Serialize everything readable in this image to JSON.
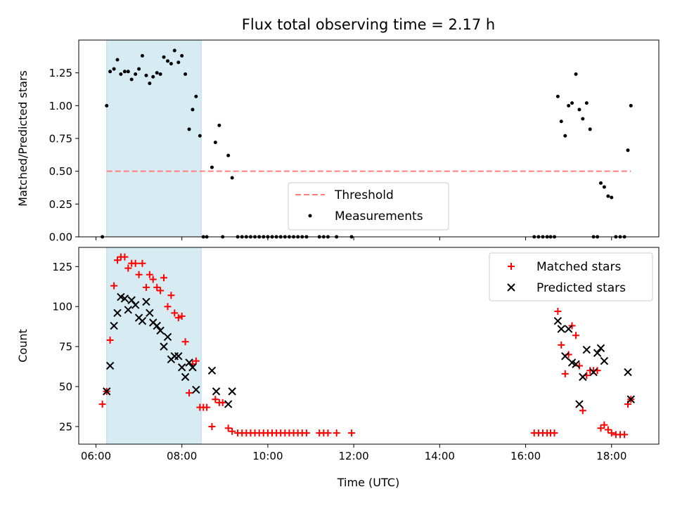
{
  "chart_data": [
    {
      "type": "scatter",
      "title": "Flux total observing time = 2.17 h",
      "xlabel": "",
      "ylabel": "Matched/Predicted stars",
      "xlim": [
        5.6,
        19.1
      ],
      "ylim": [
        0,
        1.5
      ],
      "y_ticks": [
        {
          "v": 0.0,
          "label": "0.00"
        },
        {
          "v": 0.25,
          "label": "0.25"
        },
        {
          "v": 0.5,
          "label": "0.50"
        },
        {
          "v": 0.75,
          "label": "0.75"
        },
        {
          "v": 1.0,
          "label": "1.00"
        },
        {
          "v": 1.25,
          "label": "1.25"
        }
      ],
      "shaded_region": [
        6.25,
        8.45
      ],
      "threshold": {
        "y": 0.5,
        "x_range": [
          6.25,
          18.45
        ]
      },
      "legend": {
        "position": "lower-center",
        "entries": [
          "Threshold",
          "Measurements"
        ]
      },
      "series": [
        {
          "name": "Measurements",
          "color": "#000000",
          "points": [
            [
              6.15,
              0.0
            ],
            [
              6.25,
              1.0
            ],
            [
              6.33,
              1.26
            ],
            [
              6.42,
              1.28
            ],
            [
              6.5,
              1.35
            ],
            [
              6.58,
              1.24
            ],
            [
              6.67,
              1.26
            ],
            [
              6.75,
              1.26
            ],
            [
              6.83,
              1.2
            ],
            [
              6.92,
              1.24
            ],
            [
              7.0,
              1.28
            ],
            [
              7.08,
              1.38
            ],
            [
              7.17,
              1.23
            ],
            [
              7.25,
              1.17
            ],
            [
              7.33,
              1.22
            ],
            [
              7.42,
              1.25
            ],
            [
              7.5,
              1.24
            ],
            [
              7.58,
              1.37
            ],
            [
              7.67,
              1.34
            ],
            [
              7.75,
              1.32
            ],
            [
              7.83,
              1.42
            ],
            [
              7.92,
              1.33
            ],
            [
              8.0,
              1.38
            ],
            [
              8.08,
              1.24
            ],
            [
              8.17,
              0.82
            ],
            [
              8.25,
              0.97
            ],
            [
              8.33,
              1.07
            ],
            [
              8.42,
              0.77
            ],
            [
              8.5,
              0.0
            ],
            [
              8.58,
              0.0
            ],
            [
              8.7,
              0.53
            ],
            [
              8.78,
              0.72
            ],
            [
              8.87,
              0.85
            ],
            [
              8.95,
              0.0
            ],
            [
              9.08,
              0.62
            ],
            [
              9.17,
              0.45
            ],
            [
              9.3,
              0.0
            ],
            [
              9.4,
              0.0
            ],
            [
              9.5,
              0.0
            ],
            [
              9.6,
              0.0
            ],
            [
              9.7,
              0.0
            ],
            [
              9.8,
              0.0
            ],
            [
              9.9,
              0.0
            ],
            [
              10.0,
              0.0
            ],
            [
              10.1,
              0.0
            ],
            [
              10.2,
              0.0
            ],
            [
              10.3,
              0.0
            ],
            [
              10.4,
              0.0
            ],
            [
              10.5,
              0.0
            ],
            [
              10.6,
              0.0
            ],
            [
              10.7,
              0.0
            ],
            [
              10.8,
              0.0
            ],
            [
              10.9,
              0.0
            ],
            [
              11.2,
              0.0
            ],
            [
              11.3,
              0.0
            ],
            [
              11.4,
              0.0
            ],
            [
              11.6,
              0.0
            ],
            [
              11.95,
              0.0
            ],
            [
              16.2,
              0.0
            ],
            [
              16.3,
              0.0
            ],
            [
              16.4,
              0.0
            ],
            [
              16.5,
              0.0
            ],
            [
              16.58,
              0.0
            ],
            [
              16.67,
              0.0
            ],
            [
              16.75,
              1.07
            ],
            [
              16.83,
              0.88
            ],
            [
              16.92,
              0.77
            ],
            [
              17.0,
              1.0
            ],
            [
              17.08,
              1.02
            ],
            [
              17.17,
              1.24
            ],
            [
              17.25,
              0.97
            ],
            [
              17.33,
              0.9
            ],
            [
              17.42,
              1.02
            ],
            [
              17.5,
              0.82
            ],
            [
              17.58,
              0.0
            ],
            [
              17.67,
              0.0
            ],
            [
              17.75,
              0.41
            ],
            [
              17.83,
              0.38
            ],
            [
              17.92,
              0.31
            ],
            [
              18.0,
              0.3
            ],
            [
              18.1,
              0.0
            ],
            [
              18.2,
              0.0
            ],
            [
              18.3,
              0.0
            ],
            [
              18.38,
              0.66
            ],
            [
              18.45,
              1.0
            ]
          ]
        }
      ]
    },
    {
      "type": "scatter",
      "title": "",
      "xlabel": "Time (UTC)",
      "ylabel": "Count",
      "xlim": [
        5.6,
        19.1
      ],
      "ylim": [
        14,
        137
      ],
      "y_ticks": [
        {
          "v": 25,
          "label": "25"
        },
        {
          "v": 50,
          "label": "50"
        },
        {
          "v": 75,
          "label": "75"
        },
        {
          "v": 100,
          "label": "100"
        },
        {
          "v": 125,
          "label": "125"
        }
      ],
      "x_ticks": [
        {
          "v": 6,
          "label": "06:00"
        },
        {
          "v": 8,
          "label": "08:00"
        },
        {
          "v": 10,
          "label": "10:00"
        },
        {
          "v": 12,
          "label": "12:00"
        },
        {
          "v": 14,
          "label": "14:00"
        },
        {
          "v": 16,
          "label": "16:00"
        },
        {
          "v": 18,
          "label": "18:00"
        }
      ],
      "shaded_region": [
        6.25,
        8.45
      ],
      "legend": {
        "position": "top-right",
        "entries": [
          "Matched stars",
          "Predicted stars"
        ]
      },
      "series": [
        {
          "name": "Matched stars",
          "marker": "+",
          "color": "#ff0000",
          "points": [
            [
              6.15,
              39
            ],
            [
              6.25,
              47
            ],
            [
              6.33,
              79
            ],
            [
              6.42,
              113
            ],
            [
              6.5,
              129
            ],
            [
              6.58,
              131
            ],
            [
              6.67,
              131
            ],
            [
              6.75,
              124
            ],
            [
              6.83,
              127
            ],
            [
              6.92,
              127
            ],
            [
              7.0,
              120
            ],
            [
              7.08,
              127
            ],
            [
              7.17,
              112
            ],
            [
              7.25,
              120
            ],
            [
              7.33,
              117
            ],
            [
              7.42,
              112
            ],
            [
              7.5,
              110
            ],
            [
              7.58,
              118
            ],
            [
              7.67,
              100
            ],
            [
              7.75,
              107
            ],
            [
              7.83,
              96
            ],
            [
              7.92,
              93
            ],
            [
              8.0,
              94
            ],
            [
              8.08,
              78
            ],
            [
              8.17,
              46
            ],
            [
              8.25,
              64
            ],
            [
              8.33,
              66
            ],
            [
              8.42,
              37
            ],
            [
              8.5,
              37
            ],
            [
              8.58,
              37
            ],
            [
              8.7,
              25
            ],
            [
              8.78,
              42
            ],
            [
              8.87,
              40
            ],
            [
              8.95,
              40
            ],
            [
              9.08,
              24
            ],
            [
              9.17,
              22
            ],
            [
              9.3,
              21
            ],
            [
              9.4,
              21
            ],
            [
              9.5,
              21
            ],
            [
              9.6,
              21
            ],
            [
              9.7,
              21
            ],
            [
              9.8,
              21
            ],
            [
              9.9,
              21
            ],
            [
              10.0,
              21
            ],
            [
              10.1,
              21
            ],
            [
              10.2,
              21
            ],
            [
              10.3,
              21
            ],
            [
              10.4,
              21
            ],
            [
              10.5,
              21
            ],
            [
              10.6,
              21
            ],
            [
              10.7,
              21
            ],
            [
              10.8,
              21
            ],
            [
              10.9,
              21
            ],
            [
              11.2,
              21
            ],
            [
              11.3,
              21
            ],
            [
              11.4,
              21
            ],
            [
              11.6,
              21
            ],
            [
              11.95,
              21
            ],
            [
              16.2,
              21
            ],
            [
              16.3,
              21
            ],
            [
              16.4,
              21
            ],
            [
              16.5,
              21
            ],
            [
              16.58,
              21
            ],
            [
              16.67,
              21
            ],
            [
              16.75,
              97
            ],
            [
              16.83,
              76
            ],
            [
              16.92,
              58
            ],
            [
              17.0,
              70
            ],
            [
              17.08,
              88
            ],
            [
              17.17,
              82
            ],
            [
              17.25,
              63
            ],
            [
              17.33,
              35
            ],
            [
              17.42,
              57
            ],
            [
              17.5,
              60
            ],
            [
              17.58,
              60
            ],
            [
              17.67,
              60
            ],
            [
              17.75,
              24
            ],
            [
              17.83,
              26
            ],
            [
              17.92,
              23
            ],
            [
              18.0,
              21
            ],
            [
              18.1,
              20
            ],
            [
              18.2,
              20
            ],
            [
              18.3,
              20
            ],
            [
              18.38,
              39
            ],
            [
              18.45,
              42
            ]
          ]
        },
        {
          "name": "Predicted stars",
          "marker": "x",
          "color": "#000000",
          "points": [
            [
              6.25,
              47
            ],
            [
              6.33,
              63
            ],
            [
              6.42,
              88
            ],
            [
              6.5,
              96
            ],
            [
              6.58,
              106
            ],
            [
              6.67,
              105
            ],
            [
              6.75,
              98
            ],
            [
              6.83,
              104
            ],
            [
              6.92,
              101
            ],
            [
              7.0,
              93
            ],
            [
              7.08,
              91
            ],
            [
              7.17,
              103
            ],
            [
              7.25,
              96
            ],
            [
              7.33,
              90
            ],
            [
              7.42,
              88
            ],
            [
              7.5,
              85
            ],
            [
              7.58,
              75
            ],
            [
              7.67,
              81
            ],
            [
              7.75,
              67
            ],
            [
              7.83,
              69
            ],
            [
              7.92,
              69
            ],
            [
              8.0,
              62
            ],
            [
              8.08,
              56
            ],
            [
              8.17,
              65
            ],
            [
              8.25,
              62
            ],
            [
              8.33,
              48
            ],
            [
              8.7,
              60
            ],
            [
              8.8,
              47
            ],
            [
              9.08,
              39
            ],
            [
              9.17,
              47
            ],
            [
              16.75,
              91
            ],
            [
              16.83,
              86
            ],
            [
              16.92,
              69
            ],
            [
              17.0,
              86
            ],
            [
              17.08,
              65
            ],
            [
              17.17,
              64
            ],
            [
              17.25,
              39
            ],
            [
              17.33,
              56
            ],
            [
              17.42,
              73
            ],
            [
              17.58,
              59
            ],
            [
              17.67,
              71
            ],
            [
              17.75,
              74
            ],
            [
              17.83,
              66
            ],
            [
              18.38,
              59
            ],
            [
              18.45,
              42
            ]
          ]
        }
      ]
    }
  ],
  "colors": {
    "shade": "#add8e6",
    "threshold": "#ff7f7f",
    "matched": "#ff0000",
    "predicted": "#000000"
  }
}
